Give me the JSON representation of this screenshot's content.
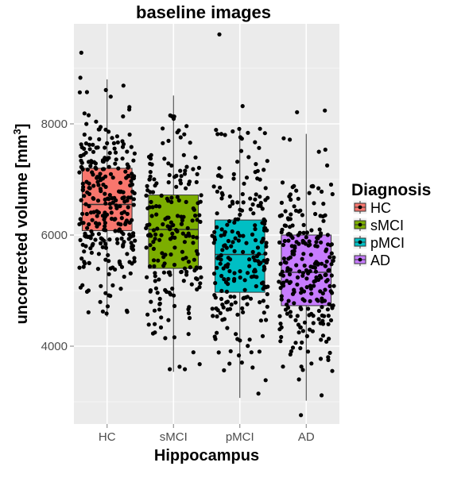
{
  "chart_data": {
    "type": "boxplot",
    "title": "baseline images",
    "xlabel": "Hippocampus",
    "ylabel": "uncorrected volume [mm",
    "ylabel_superscript": "3",
    "ylabel_suffix": "]",
    "categories": [
      "HC",
      "sMCI",
      "pMCI",
      "AD"
    ],
    "yticks": [
      4000,
      6000,
      8000
    ],
    "ylim": [
      2600,
      9800
    ],
    "grid": true,
    "legend": {
      "title": "Diagnosis",
      "placement": "right",
      "entries": [
        "HC",
        "sMCI",
        "pMCI",
        "AD"
      ]
    },
    "colors": {
      "HC": "#f8766d",
      "sMCI": "#7cae00",
      "pMCI": "#00bfc4",
      "AD": "#c77cff",
      "panel": "#ebebeb",
      "points": "#000000"
    },
    "boxes": [
      {
        "name": "HC",
        "q1": 6080,
        "median": 6550,
        "q3": 7200,
        "whisker_low": 4530,
        "whisker_high": 8800,
        "n_points": 300,
        "outliers": [
          9280,
          8830
        ]
      },
      {
        "name": "sMCI",
        "q1": 5400,
        "median": 6100,
        "q3": 6720,
        "whisker_low": 3540,
        "whisker_high": 8510,
        "n_points": 210,
        "outliers": []
      },
      {
        "name": "pMCI",
        "q1": 4970,
        "median": 5650,
        "q3": 6270,
        "whisker_low": 3070,
        "whisker_high": 7940,
        "n_points": 230,
        "outliers": [
          9610,
          8320
        ]
      },
      {
        "name": "AD",
        "q1": 4730,
        "median": 5330,
        "q3": 6000,
        "whisker_low": 3020,
        "whisker_high": 7820,
        "n_points": 260,
        "outliers": [
          2760,
          8240,
          8210
        ]
      }
    ]
  }
}
